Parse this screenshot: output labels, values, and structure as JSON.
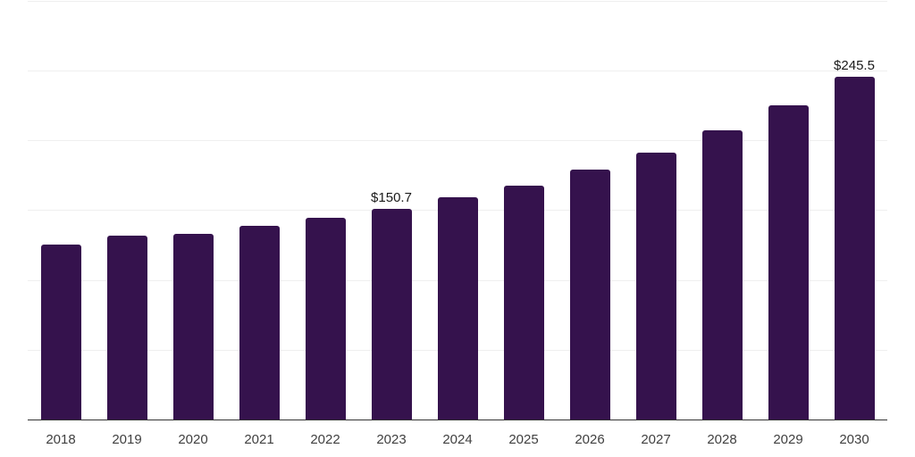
{
  "chart_data": {
    "type": "bar",
    "title": "",
    "xlabel": "",
    "ylabel": "",
    "categories": [
      "2018",
      "2019",
      "2020",
      "2021",
      "2022",
      "2023",
      "2024",
      "2025",
      "2026",
      "2027",
      "2028",
      "2029",
      "2030"
    ],
    "values": [
      125.4,
      131.8,
      133.1,
      138.8,
      144.6,
      150.7,
      159.0,
      167.6,
      179.1,
      191.3,
      207.3,
      225.2,
      245.5
    ],
    "data_labels": [
      "",
      "",
      "",
      "",
      "",
      "$150.7",
      "",
      "",
      "",
      "",
      "",
      "",
      "$245.5"
    ],
    "ylim": [
      0,
      300
    ],
    "gridline_step": 50,
    "grid": "horizontal-only",
    "legend": "none",
    "colors": {
      "bar": "#35124D",
      "gridline": "#efefef",
      "axis_line": "#333333",
      "tick_label": "#404040",
      "value_label": "#1a1a1a",
      "background": "#ffffff"
    }
  }
}
